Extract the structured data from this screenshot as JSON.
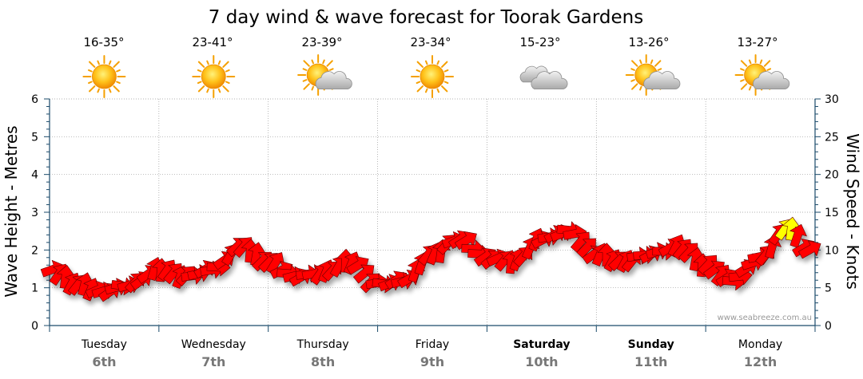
{
  "title": "7 day wind & wave forecast for Toorak Gardens",
  "credit": "www.seabreeze.com.au",
  "left_axis_label": "Wave Height - Metres",
  "right_axis_label": "Wind Speed - Knots",
  "days": [
    {
      "name": "Tuesday",
      "date": "6th",
      "temp": "16-35°",
      "icon": "sun-icon",
      "bold": false
    },
    {
      "name": "Wednesday",
      "date": "7th",
      "temp": "23-41°",
      "icon": "sun-icon",
      "bold": false
    },
    {
      "name": "Thursday",
      "date": "8th",
      "temp": "23-39°",
      "icon": "partly-cloudy-icon",
      "bold": false
    },
    {
      "name": "Friday",
      "date": "9th",
      "temp": "23-34°",
      "icon": "sun-icon",
      "bold": false
    },
    {
      "name": "Saturday",
      "date": "10th",
      "temp": "15-23°",
      "icon": "cloud-icon",
      "bold": true
    },
    {
      "name": "Sunday",
      "date": "11th",
      "temp": "13-26°",
      "icon": "partly-cloudy-icon",
      "bold": true
    },
    {
      "name": "Monday",
      "date": "12th",
      "temp": "13-27°",
      "icon": "partly-cloudy-icon",
      "bold": false
    }
  ],
  "colors": {
    "arrow_red": "#ff0000",
    "arrow_yellow": "#ffff00",
    "grid": "#999999",
    "axis": "#1a4a6a",
    "date_text": "#777777"
  },
  "chart_data": {
    "type": "line",
    "left_axis": {
      "label": "Wave Height - Metres",
      "ylim": [
        0,
        6
      ],
      "ticks": [
        "0",
        "1",
        "2",
        "3",
        "4",
        "5",
        "6"
      ]
    },
    "right_axis": {
      "label": "Wind Speed - Knots",
      "ylim": [
        0,
        30
      ],
      "ticks": [
        "0",
        "5",
        "10",
        "15",
        "20",
        "25",
        "30"
      ]
    },
    "x_categories": [
      "Tuesday 6th",
      "Wednesday 7th",
      "Thursday 8th",
      "Friday 9th",
      "Saturday 10th",
      "Sunday 11th",
      "Monday 12th"
    ],
    "grid": true,
    "series": [
      {
        "type": "wind-arrows",
        "x_days": [
          0,
          0.25,
          0.5,
          0.75,
          1,
          1.25,
          1.5,
          1.75,
          2,
          2.25,
          2.5,
          2.75,
          3,
          3.25,
          3.5,
          3.75,
          4,
          4.25,
          4.5,
          4.75,
          5,
          5.25,
          5.5,
          5.75,
          6,
          6.25,
          6.5,
          6.75,
          6.95
        ],
        "knots": [
          7.5,
          5.5,
          4.5,
          5.5,
          7.5,
          6.5,
          7.5,
          10.5,
          8.5,
          6.5,
          7.0,
          8.5,
          5.5,
          6.0,
          9.5,
          11.5,
          9.0,
          8.5,
          11.5,
          12.5,
          9.5,
          8.5,
          9.5,
          10.5,
          8.0,
          6.0,
          9.0,
          13.0,
          10.0
        ],
        "strong_above_knots": 12.5
      }
    ]
  }
}
